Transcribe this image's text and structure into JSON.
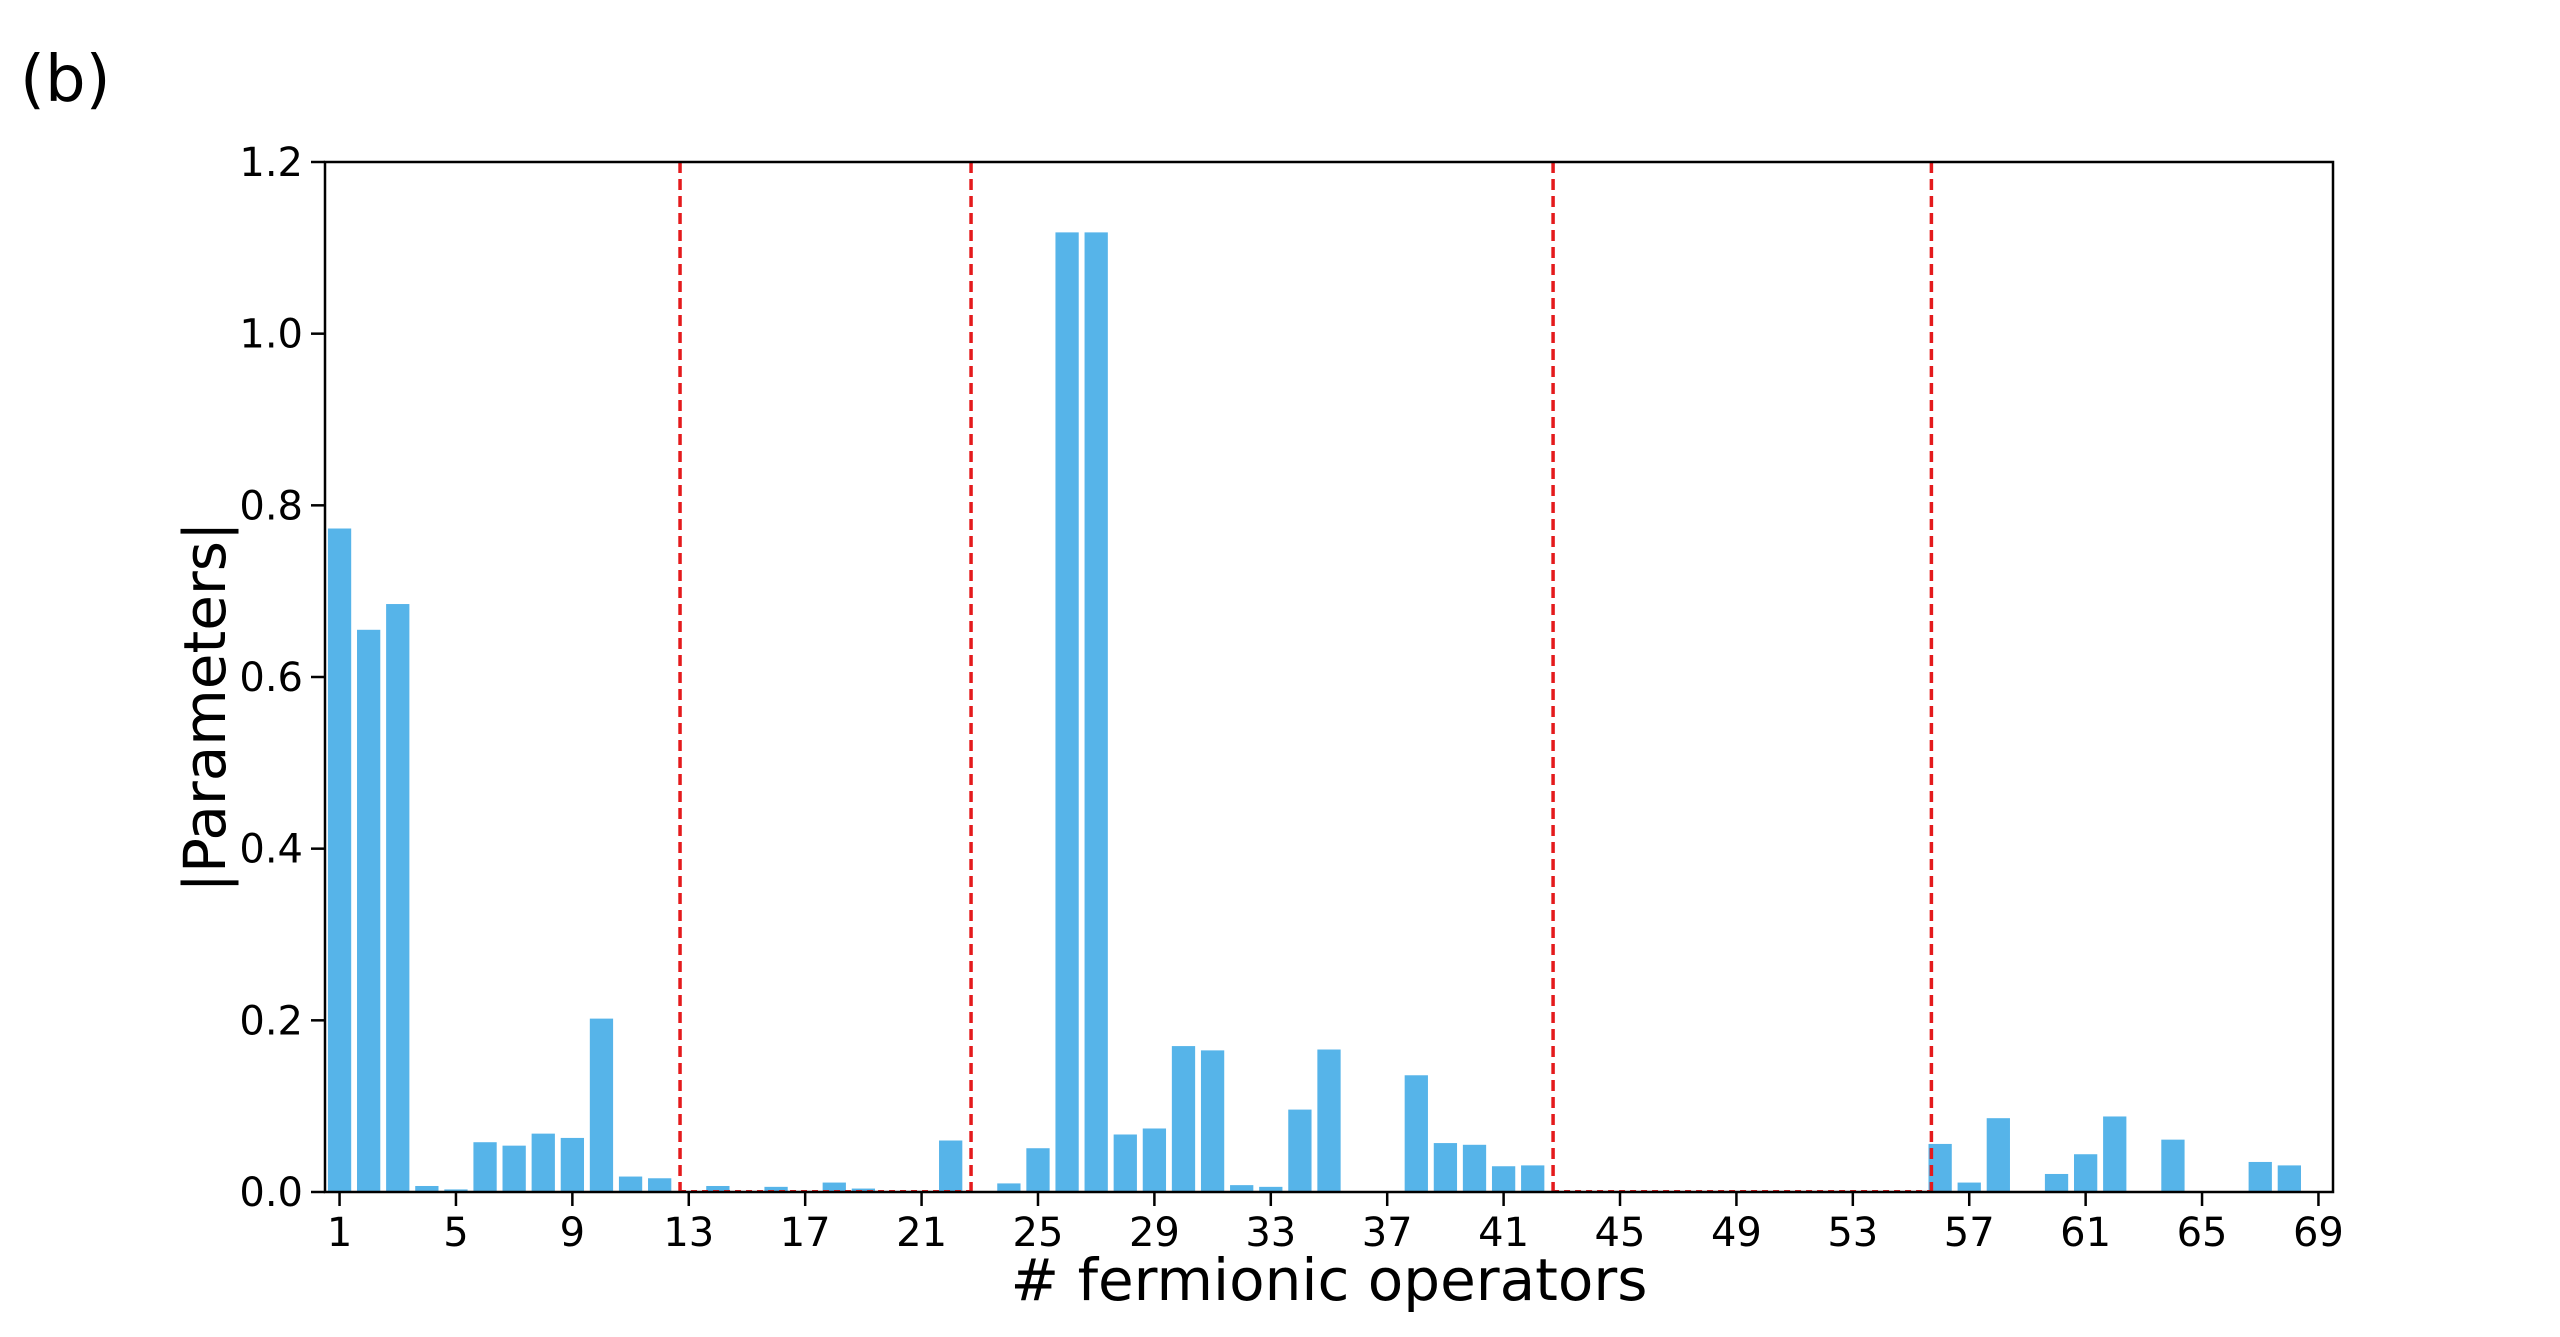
{
  "panel_label": "(b)",
  "chart_data": {
    "type": "bar",
    "xlabel": "# fermionic operators",
    "ylabel": "|Parameters|",
    "ylim": [
      0,
      1.2
    ],
    "xlim": [
      0.5,
      69.5
    ],
    "grid": false,
    "yticks": [
      0.0,
      0.2,
      0.4,
      0.6,
      0.8,
      1.0,
      1.2
    ],
    "ytick_labels": [
      "0.0",
      "0.2",
      "0.4",
      "0.6",
      "0.8",
      "1.0",
      "1.2"
    ],
    "xticks": [
      1,
      5,
      9,
      13,
      17,
      21,
      25,
      29,
      33,
      37,
      41,
      45,
      49,
      53,
      57,
      61,
      65,
      69
    ],
    "xtick_labels": [
      "1",
      "5",
      "9",
      "13",
      "17",
      "21",
      "25",
      "29",
      "33",
      "37",
      "41",
      "45",
      "49",
      "53",
      "57",
      "61",
      "65",
      "69"
    ],
    "x": [
      1,
      2,
      3,
      4,
      5,
      6,
      7,
      8,
      9,
      10,
      11,
      12,
      13,
      14,
      15,
      16,
      17,
      18,
      19,
      20,
      21,
      22,
      23,
      24,
      25,
      26,
      27,
      28,
      29,
      30,
      31,
      32,
      33,
      34,
      35,
      36,
      37,
      38,
      39,
      40,
      41,
      42,
      43,
      44,
      45,
      46,
      47,
      48,
      49,
      50,
      51,
      52,
      53,
      54,
      55,
      56,
      57,
      58,
      59,
      60,
      61,
      62,
      63,
      64,
      65,
      66,
      67,
      68
    ],
    "values": [
      0.773,
      0.655,
      0.685,
      0.007,
      0.003,
      0.058,
      0.054,
      0.068,
      0.063,
      0.202,
      0.018,
      0.016,
      0.001,
      0.007,
      0.001,
      0.006,
      0.001,
      0.011,
      0.004,
      0.001,
      0.001,
      0.06,
      0.001,
      0.01,
      0.051,
      1.118,
      1.118,
      0.067,
      0.074,
      0.17,
      0.165,
      0.008,
      0.006,
      0.096,
      0.166,
      0.0,
      0.0,
      0.136,
      0.057,
      0.055,
      0.03,
      0.031,
      0.0,
      0.0,
      0.0,
      0.0,
      0.0,
      0.0,
      0.0,
      0.0,
      0.0,
      0.0,
      0.0,
      0.0,
      0.0,
      0.056,
      0.011,
      0.086,
      0.0,
      0.021,
      0.044,
      0.088,
      0.0,
      0.061,
      0.0,
      0.0,
      0.035,
      0.031
    ],
    "vlines": [
      12.7,
      22.7,
      42.7,
      55.7
    ],
    "colors": {
      "bar": "#56b4e9",
      "vline": "#e41a1c",
      "axis": "#000000"
    }
  }
}
